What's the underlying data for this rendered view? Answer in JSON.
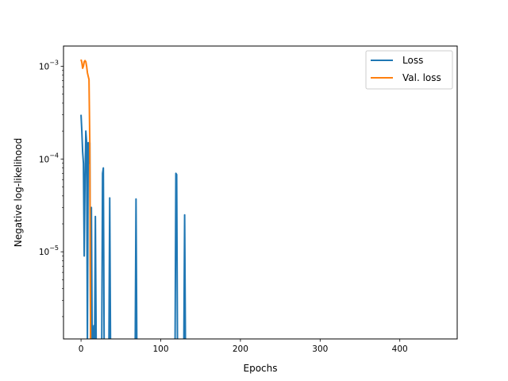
{
  "chart_data": {
    "type": "line",
    "title": "",
    "xlabel": "Epochs",
    "ylabel": "Negative log-likelihood",
    "xlim": [
      -22,
      472
    ],
    "ylim": [
      1.15e-06,
      0.00165
    ],
    "yscale": "log",
    "grid": false,
    "legend_position": "top-right",
    "x_ticks": [
      {
        "value": 0,
        "label": "0"
      },
      {
        "value": 100,
        "label": "100"
      },
      {
        "value": 200,
        "label": "200"
      },
      {
        "value": 300,
        "label": "300"
      },
      {
        "value": 400,
        "label": "400"
      }
    ],
    "y_ticks": [
      {
        "value": 1e-05,
        "base": "10",
        "exp": "−5"
      },
      {
        "value": 0.0001,
        "base": "10",
        "exp": "−4"
      },
      {
        "value": 0.001,
        "base": "10",
        "exp": "−3"
      }
    ],
    "series": [
      {
        "name": "Loss",
        "color": "#1f77b4",
        "points": [
          [
            0,
            0.0003
          ],
          [
            1,
            0.0002
          ],
          [
            2,
            0.00012
          ],
          [
            3,
            9e-05
          ],
          [
            4,
            9e-06
          ],
          [
            5,
            6e-05
          ],
          [
            6,
            0.0002
          ],
          [
            7,
            0.00015
          ],
          [
            8,
            1e-06
          ],
          [
            9,
            0.00015
          ],
          [
            10,
            9e-05
          ],
          [
            11,
            0.00015
          ],
          [
            12,
            1e-06
          ],
          [
            13,
            3e-05
          ],
          [
            14,
            1e-06
          ],
          [
            15,
            1e-06
          ],
          [
            16,
            1.6e-06
          ],
          [
            17,
            1e-06
          ],
          [
            18,
            2.4e-05
          ],
          [
            19,
            1e-06
          ],
          [
            26,
            1e-06
          ],
          [
            27,
            7e-05
          ],
          [
            28,
            8e-05
          ],
          [
            29,
            1e-06
          ],
          [
            35,
            1e-06
          ],
          [
            36,
            3.8e-05
          ],
          [
            37,
            1e-06
          ],
          [
            68,
            1e-06
          ],
          [
            69,
            3.7e-05
          ],
          [
            70,
            1e-06
          ],
          [
            118,
            1e-06
          ],
          [
            119,
            7e-05
          ],
          [
            120,
            6.8e-05
          ],
          [
            121,
            1e-06
          ],
          [
            129,
            1e-06
          ],
          [
            130,
            2.5e-05
          ],
          [
            131,
            1e-06
          ]
        ]
      },
      {
        "name": "Val. loss",
        "color": "#ff7f0e",
        "points": [
          [
            0,
            0.00118
          ],
          [
            1,
            0.0011
          ],
          [
            2,
            0.00095
          ],
          [
            3,
            0.001
          ],
          [
            4,
            0.00112
          ],
          [
            5,
            0.00115
          ],
          [
            6,
            0.00112
          ],
          [
            7,
            0.001
          ],
          [
            8,
            0.00085
          ],
          [
            9,
            0.00078
          ],
          [
            10,
            0.00072
          ],
          [
            11,
            0.00015
          ],
          [
            12,
            1e-06
          ]
        ]
      }
    ]
  }
}
